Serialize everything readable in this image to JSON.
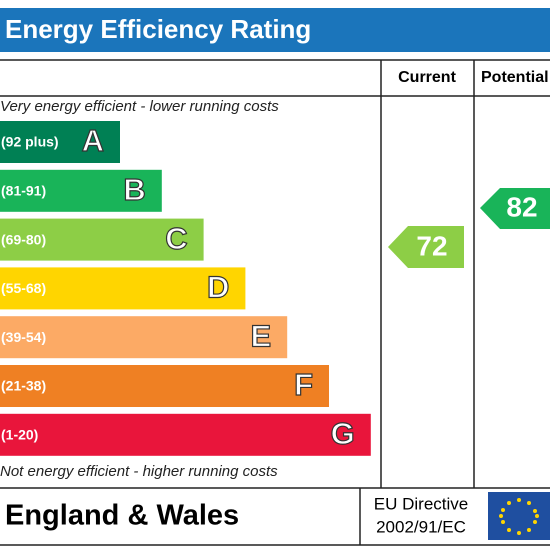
{
  "title": "Energy Efficiency Rating",
  "columns": [
    "Current",
    "Potential"
  ],
  "top_note": "Very energy efficient - lower running costs",
  "bottom_note": "Not energy efficient - higher running costs",
  "bands": [
    {
      "range": "(92 plus)",
      "letter": "A",
      "color": "#008054"
    },
    {
      "range": "(81-91)",
      "letter": "B",
      "color": "#19b459"
    },
    {
      "range": "(69-80)",
      "letter": "C",
      "color": "#8dce46"
    },
    {
      "range": "(55-68)",
      "letter": "D",
      "color": "#ffd500"
    },
    {
      "range": "(39-54)",
      "letter": "E",
      "color": "#fcaa65"
    },
    {
      "range": "(21-38)",
      "letter": "F",
      "color": "#ef8023"
    },
    {
      "range": "(1-20)",
      "letter": "G",
      "color": "#e9153b"
    }
  ],
  "current": {
    "value": 72,
    "color": "#8dce46"
  },
  "potential": {
    "value": 82,
    "color": "#19b459"
  },
  "footer": {
    "region": "England & Wales",
    "directive": [
      "EU Directive",
      "2002/91/EC"
    ]
  }
}
